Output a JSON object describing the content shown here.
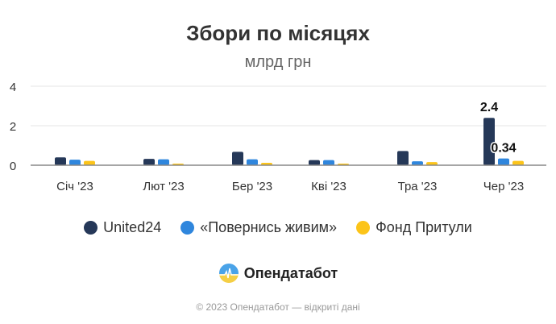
{
  "header": {
    "title": "Збори по місяцях",
    "subtitle": "млрд грн"
  },
  "legend": [
    {
      "label": "United24",
      "color": "#253858"
    },
    {
      "label": "«Повернись живим»",
      "color": "#2f86dd"
    },
    {
      "label": "Фонд Притули",
      "color": "#fcc419"
    }
  ],
  "branding": {
    "logo_text": "Опендатабот"
  },
  "footer": {
    "text": "© 2023 Опендатабот — відкриті дані"
  },
  "chart_data": {
    "type": "bar",
    "title": "Збори по місяцях",
    "subtitle": "млрд грн",
    "xlabel": "",
    "ylabel": "млрд грн",
    "ylim": [
      0,
      4
    ],
    "yticks": [
      0,
      2,
      4
    ],
    "grid": true,
    "legend_position": "bottom",
    "categories": [
      "Січ '23",
      "Лют '23",
      "Бер '23",
      "Кві '23",
      "Тра '23",
      "Чер '23"
    ],
    "series": [
      {
        "name": "United24",
        "color": "#253858",
        "values": [
          0.4,
          0.32,
          0.68,
          0.26,
          0.72,
          2.4
        ]
      },
      {
        "name": "«Повернись живим»",
        "color": "#2f86dd",
        "values": [
          0.28,
          0.3,
          0.3,
          0.26,
          0.2,
          0.34
        ]
      },
      {
        "name": "Фонд Притули",
        "color": "#fcc419",
        "values": [
          0.22,
          0.06,
          0.12,
          0.06,
          0.16,
          0.22
        ]
      }
    ],
    "annotations": [
      {
        "category": "Чер '23",
        "series": "United24",
        "text": "2.4"
      },
      {
        "category": "Чер '23",
        "series": "«Повернись живим»",
        "text": "0.34"
      }
    ]
  }
}
